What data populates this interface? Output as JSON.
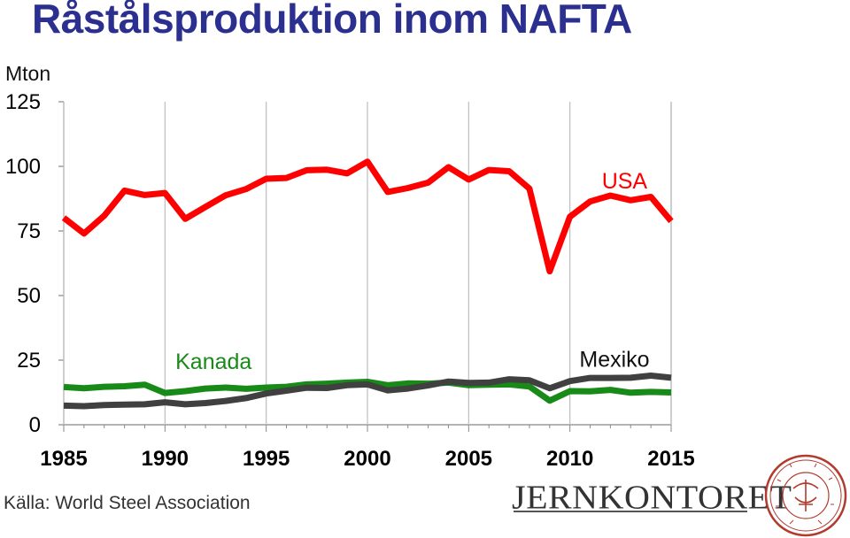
{
  "title": "Råstålsproduktion inom NAFTA",
  "unit": "Mton",
  "source": "Källa: World Steel Association",
  "logo": {
    "text": "JERNKONTORET",
    "seal_text": "JERN CONTOIRETS SIGILL"
  },
  "colors": {
    "title": "#2b2f8f",
    "usa": "#ff0000",
    "kanada": "#178a17",
    "mexiko": "#404040"
  },
  "chart_data": {
    "type": "line",
    "title": "Råstålsproduktion inom NAFTA",
    "ylabel": "Mton",
    "xlabel": "",
    "ylim": [
      0,
      125
    ],
    "xlim": [
      1985,
      2015
    ],
    "yticks": [
      0,
      25,
      50,
      75,
      100,
      125
    ],
    "xticks": [
      1985,
      1990,
      1995,
      2000,
      2005,
      2010,
      2015
    ],
    "grid": false,
    "x": [
      1985,
      1986,
      1987,
      1988,
      1989,
      1990,
      1991,
      1992,
      1993,
      1994,
      1995,
      1996,
      1997,
      1998,
      1999,
      2000,
      2001,
      2002,
      2003,
      2004,
      2005,
      2006,
      2007,
      2008,
      2009,
      2010,
      2011,
      2012,
      2013,
      2014,
      2015
    ],
    "series": [
      {
        "name": "USA",
        "color": "#ff0000",
        "values": [
          80.1,
          74.0,
          80.9,
          90.6,
          88.9,
          89.7,
          79.7,
          84.3,
          88.8,
          91.2,
          95.2,
          95.5,
          98.5,
          98.7,
          97.3,
          101.8,
          90.1,
          91.6,
          93.7,
          99.7,
          94.9,
          98.6,
          98.1,
          91.4,
          59.4,
          80.5,
          86.4,
          88.7,
          86.9,
          88.2,
          78.8
        ]
      },
      {
        "name": "Kanada",
        "color": "#178a17",
        "values": [
          14.6,
          14.1,
          14.7,
          14.9,
          15.5,
          12.3,
          13.0,
          14.0,
          14.4,
          13.9,
          14.4,
          14.7,
          15.6,
          15.9,
          16.3,
          16.6,
          15.3,
          16.0,
          15.9,
          16.3,
          15.3,
          15.5,
          15.6,
          14.8,
          9.3,
          13.0,
          12.9,
          13.5,
          12.4,
          12.7,
          12.5
        ]
      },
      {
        "name": "Mexiko",
        "color": "#404040",
        "values": [
          7.4,
          7.2,
          7.6,
          7.8,
          7.9,
          8.7,
          7.9,
          8.4,
          9.2,
          10.3,
          12.1,
          13.2,
          14.3,
          14.2,
          15.3,
          15.6,
          13.3,
          14.0,
          15.2,
          16.7,
          16.2,
          16.3,
          17.6,
          17.2,
          14.1,
          16.9,
          18.1,
          18.1,
          18.2,
          19.0,
          18.2
        ]
      }
    ],
    "labels": {
      "usa": "USA",
      "kanada": "Kanada",
      "mexiko": "Mexiko"
    }
  }
}
